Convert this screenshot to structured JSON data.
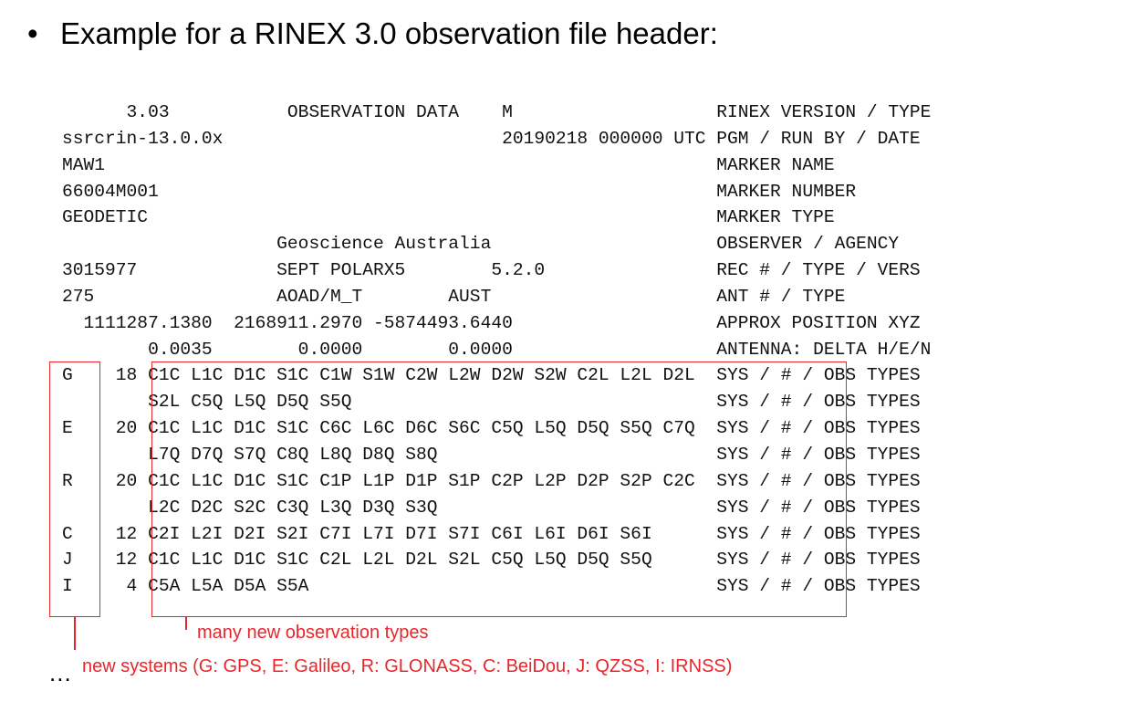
{
  "heading": {
    "bullet": "•",
    "text": "Example for a RINEX 3.0 observation file header:"
  },
  "header_lines": [
    "      3.03           OBSERVATION DATA    M                   RINEX VERSION / TYPE",
    "ssrcrin-13.0.0x                          20190218 000000 UTC PGM / RUN BY / DATE",
    "MAW1                                                         MARKER NAME",
    "66004M001                                                    MARKER NUMBER",
    "GEODETIC                                                     MARKER TYPE",
    "                    Geoscience Australia                     OBSERVER / AGENCY",
    "3015977             SEPT POLARX5        5.2.0                REC # / TYPE / VERS",
    "275                 AOAD/M_T        AUST                     ANT # / TYPE",
    "  1111287.1380  2168911.2970 -5874493.6440                   APPROX POSITION XYZ",
    "        0.0035        0.0000        0.0000                   ANTENNA: DELTA H/E/N",
    "G    18 C1C L1C D1C S1C C1W S1W C2W L2W D2W S2W C2L L2L D2L  SYS / # / OBS TYPES",
    "        S2L C5Q L5Q D5Q S5Q                                  SYS / # / OBS TYPES",
    "E    20 C1C L1C D1C S1C C6C L6C D6C S6C C5Q L5Q D5Q S5Q C7Q  SYS / # / OBS TYPES",
    "        L7Q D7Q S7Q C8Q L8Q D8Q S8Q                          SYS / # / OBS TYPES",
    "R    20 C1C L1C D1C S1C C1P L1P D1P S1P C2P L2P D2P S2P C2C  SYS / # / OBS TYPES",
    "        L2C D2C S2C C3Q L3Q D3Q S3Q                          SYS / # / OBS TYPES",
    "C    12 C2I L2I D2I S2I C7I L7I D7I S7I C6I L6I D6I S6I      SYS / # / OBS TYPES",
    "J    12 C1C L1C D1C S1C C2L L2L D2L S2L C5Q L5Q D5Q S5Q      SYS / # / OBS TYPES",
    "I     4 C5A L5A D5A S5A                                      SYS / # / OBS TYPES"
  ],
  "annotations": {
    "obs_types": "many new observation types",
    "systems": "new systems (G: GPS, E: Galileo, R: GLONASS, C: BeiDou, J: QZSS, I: IRNSS)"
  },
  "ellipsis": "...",
  "colors": {
    "annotation": "#e8262b",
    "text": "#111111"
  }
}
